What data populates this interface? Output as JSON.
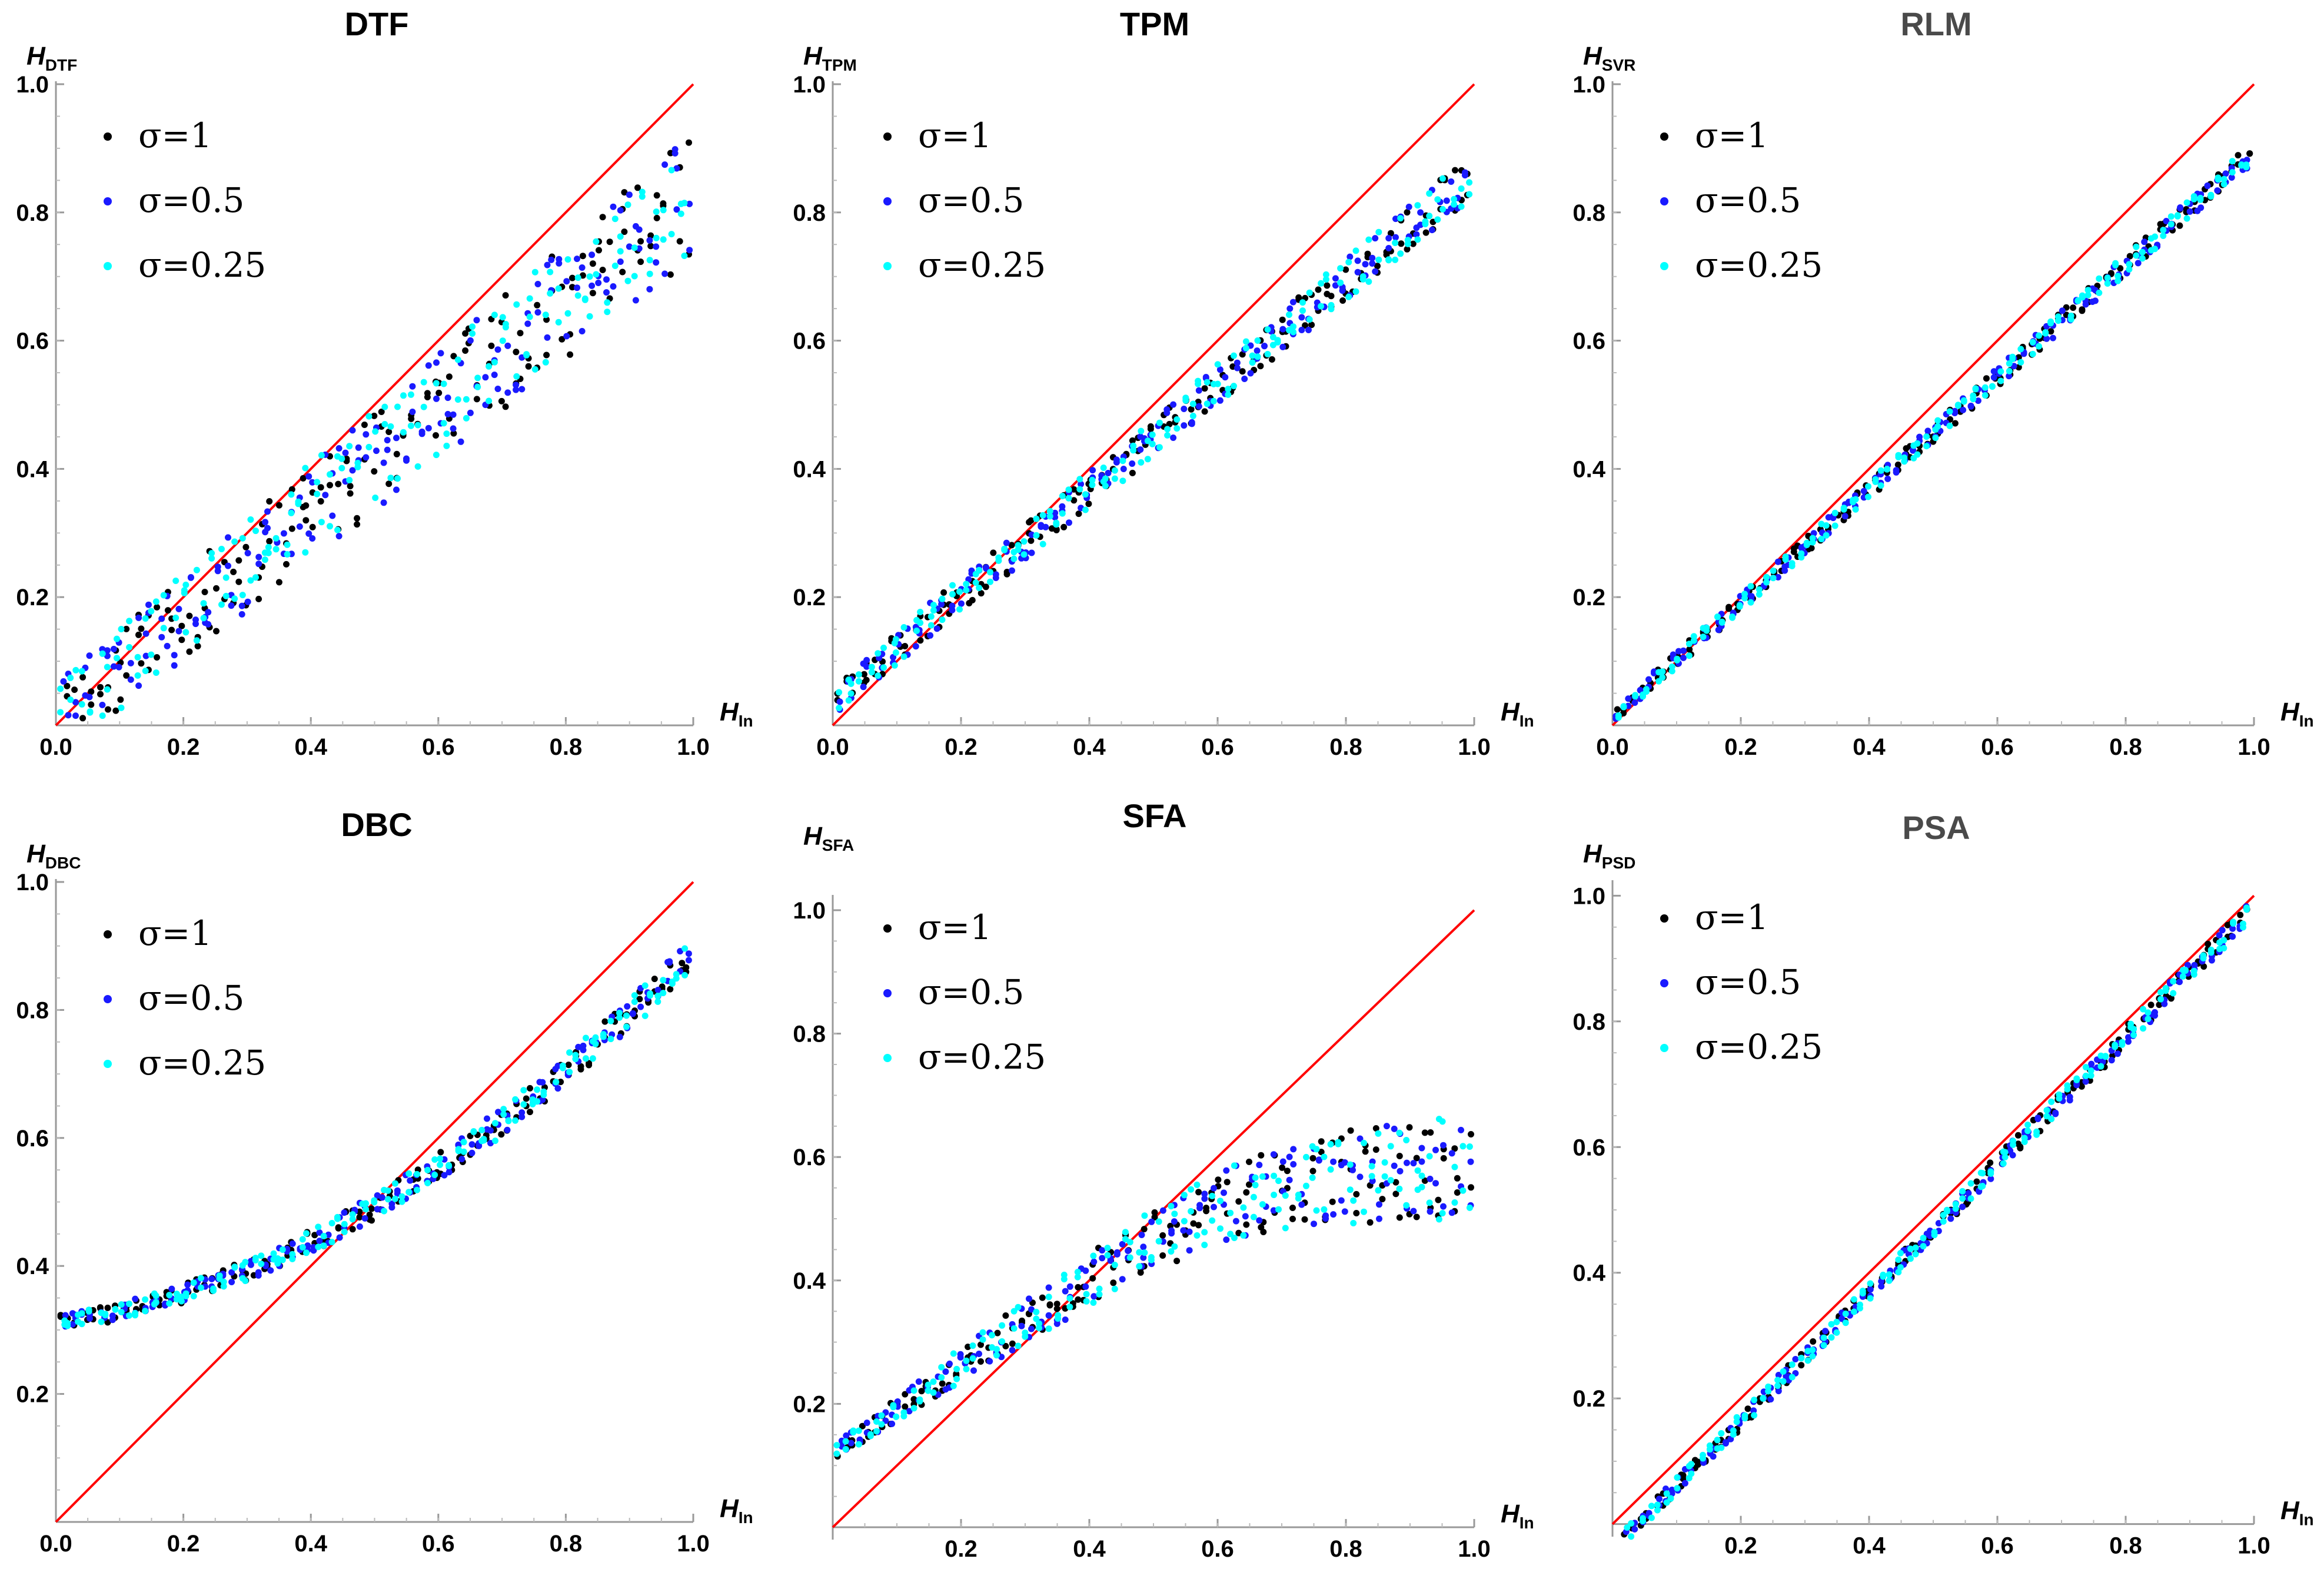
{
  "figure": {
    "series_colors": {
      "s1": "#000000",
      "s2": "#1a1aff",
      "s3": "#00ffff"
    },
    "reference_line_color": "#ff0000"
  },
  "chart_data": [
    {
      "type": "scatter",
      "id": "dtf",
      "title": "DTF",
      "title_gray": false,
      "ylabel": "H",
      "ylabel_sub": "DTF",
      "xlabel": "H",
      "xlabel_sub": "In",
      "xlim": [
        0,
        1
      ],
      "ylim": [
        0,
        1
      ],
      "xticks": [
        "0.0",
        "0.2",
        "0.4",
        "0.6",
        "0.8",
        "1.0"
      ],
      "yticks": [
        "0.2",
        "0.4",
        "0.6",
        "0.8",
        "1.0"
      ],
      "reference_line": {
        "x": [
          0,
          1
        ],
        "y": [
          0,
          1
        ]
      },
      "legend": [
        "σ=1",
        "σ=0.5",
        "σ=0.25"
      ],
      "model": "linear",
      "coef": [
        0.82,
        0.005
      ],
      "spread": 0.06,
      "spread_growth": 0.04,
      "seed": 11
    },
    {
      "type": "scatter",
      "id": "tpm",
      "title": "TPM",
      "title_gray": false,
      "ylabel": "H",
      "ylabel_sub": "TPM",
      "xlabel": "H",
      "xlabel_sub": "In",
      "xlim": [
        0,
        1
      ],
      "ylim": [
        0,
        1
      ],
      "xticks": [
        "0.0",
        "0.2",
        "0.4",
        "0.6",
        "0.8",
        "1.0"
      ],
      "yticks": [
        "0.2",
        "0.4",
        "0.6",
        "0.8",
        "1.0"
      ],
      "reference_line": {
        "x": [
          0,
          1
        ],
        "y": [
          0,
          1
        ]
      },
      "legend": [
        "σ=1",
        "σ=0.5",
        "σ=0.25"
      ],
      "model": "linear",
      "coef": [
        0.82,
        0.04
      ],
      "spread": 0.025,
      "spread_growth": 0.01,
      "seed": 23
    },
    {
      "type": "scatter",
      "id": "rlm",
      "title": "RLM",
      "title_gray": true,
      "ylabel": "H",
      "ylabel_sub": "SVR",
      "xlabel": "H",
      "xlabel_sub": "In",
      "xlim": [
        0,
        1
      ],
      "ylim": [
        0,
        1
      ],
      "xticks": [
        "0.0",
        "0.2",
        "0.4",
        "0.6",
        "0.8",
        "1.0"
      ],
      "yticks": [
        "0.2",
        "0.4",
        "0.6",
        "0.8",
        "1.0"
      ],
      "reference_line": {
        "x": [
          0,
          1
        ],
        "y": [
          0,
          1
        ]
      },
      "legend": [
        "σ=1",
        "σ=0.5",
        "σ=0.25"
      ],
      "model": "linear",
      "coef": [
        0.88,
        0.015
      ],
      "spread": 0.012,
      "spread_growth": 0.005,
      "seed": 37
    },
    {
      "type": "scatter",
      "id": "dbc",
      "title": "DBC",
      "title_gray": false,
      "ylabel": "H",
      "ylabel_sub": "DBC",
      "xlabel": "H",
      "xlabel_sub": "In",
      "xlim": [
        0,
        1
      ],
      "ylim": [
        0,
        1
      ],
      "xticks": [
        "0.0",
        "0.2",
        "0.4",
        "0.6",
        "0.8",
        "1.0"
      ],
      "yticks": [
        "0.2",
        "0.4",
        "0.6",
        "0.8",
        "1.0"
      ],
      "reference_line": {
        "x": [
          0,
          1
        ],
        "y": [
          0,
          1
        ]
      },
      "legend": [
        "σ=1",
        "σ=0.5",
        "σ=0.25"
      ],
      "model": "quadratic",
      "coef": [
        0.31,
        0.15,
        0.43
      ],
      "spread": 0.012,
      "spread_growth": 0.015,
      "seed": 41
    },
    {
      "type": "scatter",
      "id": "sfa",
      "title": "SFA",
      "title_gray": false,
      "ylabel": "H",
      "ylabel_sub": "SFA",
      "xlabel": "H",
      "xlabel_sub": "In",
      "xlim": [
        0,
        1
      ],
      "ylim": [
        -0.02,
        1.02
      ],
      "xticks": [
        "0.2",
        "0.4",
        "0.6",
        "0.8",
        "1.0"
      ],
      "yticks": [
        "0.2",
        "0.4",
        "0.6",
        "0.8",
        "1.0"
      ],
      "reference_line": {
        "x": [
          0,
          1
        ],
        "y": [
          0,
          1
        ]
      },
      "legend": [
        "σ=1",
        "σ=0.5",
        "σ=0.25"
      ],
      "model": "saturating",
      "coef": [
        0.12,
        0.72,
        0.56,
        0.58
      ],
      "spread": 0.012,
      "spread_growth": 0.08,
      "seed": 53
    },
    {
      "type": "scatter",
      "id": "psa",
      "title": "PSA",
      "title_gray": true,
      "ylabel": "H",
      "ylabel_sub": "PSD",
      "xlabel": "H",
      "xlabel_sub": "In",
      "xlim": [
        0,
        1
      ],
      "ylim": [
        -0.02,
        1.02
      ],
      "xticks": [
        "0.2",
        "0.4",
        "0.6",
        "0.8",
        "1.0"
      ],
      "yticks": [
        "0.2",
        "0.4",
        "0.6",
        "0.8",
        "1.0"
      ],
      "reference_line": {
        "x": [
          0,
          1
        ],
        "y": [
          0,
          1
        ]
      },
      "legend": [
        "σ=1",
        "σ=0.5",
        "σ=0.25"
      ],
      "model": "linear",
      "coef": [
        1.02,
        -0.04
      ],
      "spread": 0.012,
      "spread_growth": 0.005,
      "seed": 67
    }
  ]
}
